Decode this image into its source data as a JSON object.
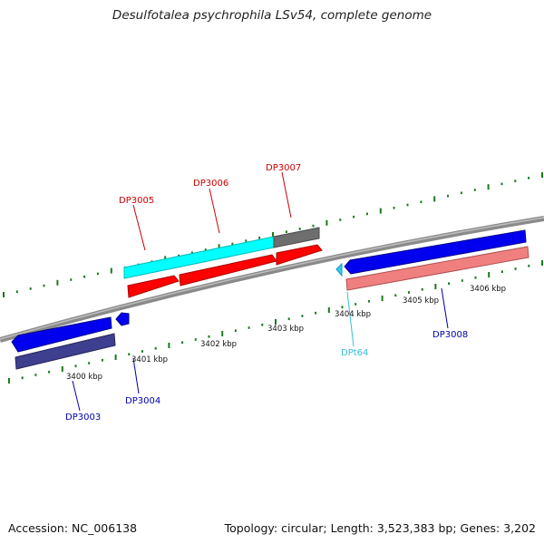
{
  "title": "Desulfotalea psychrophila LSv54, complete genome",
  "accession": "Accession: NC_006138",
  "summary": "Topology: circular; Length: 3,523,383 bp; Genes: 3,202",
  "colors": {
    "backbone": "#8a8a8a",
    "tick": "#1a7a1a",
    "forward_cds": "#ff0000",
    "forward_gene": "#00ffff",
    "forward_other": "#6e6e6e",
    "reverse_cds": "#0000ee",
    "reverse_gene": "#f08080",
    "reverse_dark": "#3f3f8f",
    "trna": "#33ccee",
    "label_forward": "#cc0000",
    "label_reverse": "#0000aa",
    "label_trna": "#33bbdd"
  },
  "scale_labels": [
    "3400 kbp",
    "3401 kbp",
    "3402 kbp",
    "3403 kbp",
    "3404 kbp",
    "3405 kbp",
    "3406 kbp"
  ],
  "gene_labels": [
    {
      "text": "DP3003",
      "strand": "reverse"
    },
    {
      "text": "DP3004",
      "strand": "reverse"
    },
    {
      "text": "DP3005",
      "strand": "forward"
    },
    {
      "text": "DP3006",
      "strand": "forward"
    },
    {
      "text": "DP3007",
      "strand": "forward"
    },
    {
      "text": "DPt64",
      "strand": "trna"
    },
    {
      "text": "DP3008",
      "strand": "reverse"
    }
  ]
}
